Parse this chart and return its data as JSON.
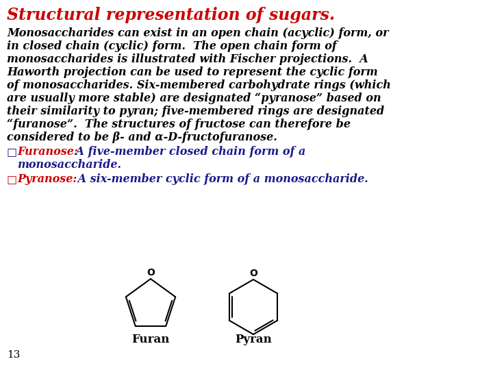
{
  "title": "Structural representation of sugars.",
  "title_color": "#CC0000",
  "title_fontsize": 17,
  "background_color": "#FFFFFF",
  "body_text_color": "#000000",
  "body_fontsize": 11.5,
  "furanose_label_color": "#CC0000",
  "pyranose_label_color": "#CC0000",
  "navy_color": "#1a1a8c",
  "page_number": "13",
  "furan_label": "Furan",
  "pyran_label": "Pyran",
  "struct_color": "#000000"
}
